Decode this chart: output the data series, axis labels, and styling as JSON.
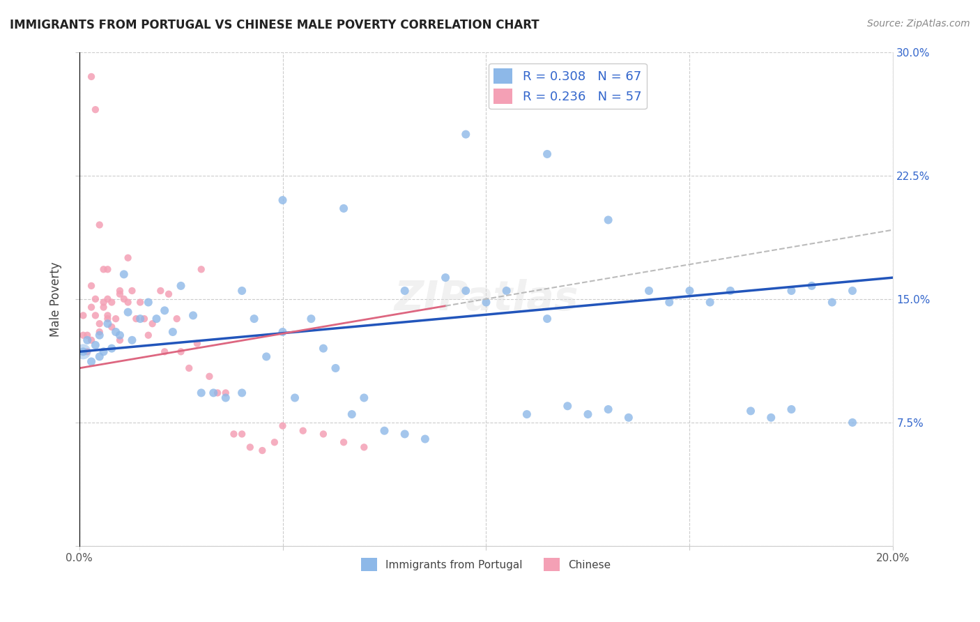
{
  "title": "IMMIGRANTS FROM PORTUGAL VS CHINESE MALE POVERTY CORRELATION CHART",
  "source": "Source: ZipAtlas.com",
  "ylabel": "Male Poverty",
  "legend_label1": "Immigrants from Portugal",
  "legend_label2": "Chinese",
  "R1": 0.308,
  "N1": 67,
  "R2": 0.236,
  "N2": 57,
  "xlim": [
    0.0,
    0.2
  ],
  "ylim": [
    0.0,
    0.3
  ],
  "xticks": [
    0.0,
    0.05,
    0.1,
    0.15,
    0.2
  ],
  "yticks": [
    0.0,
    0.075,
    0.15,
    0.225,
    0.3
  ],
  "color_blue": "#8DB8E8",
  "color_pink": "#F4A0B5",
  "color_blue_line": "#2255BB",
  "color_pink_line": "#DD6680",
  "color_gray_dashed": "#BBBBBB",
  "background": "#FFFFFF",
  "blue_line_start_y": 0.118,
  "blue_line_end_y": 0.163,
  "pink_line_start_y": 0.108,
  "pink_line_end_y": 0.192,
  "blue_x": [
    0.001,
    0.002,
    0.003,
    0.004,
    0.005,
    0.005,
    0.006,
    0.007,
    0.008,
    0.009,
    0.01,
    0.011,
    0.012,
    0.013,
    0.015,
    0.017,
    0.019,
    0.021,
    0.023,
    0.025,
    0.028,
    0.03,
    0.033,
    0.036,
    0.04,
    0.043,
    0.046,
    0.05,
    0.053,
    0.057,
    0.06,
    0.063,
    0.067,
    0.07,
    0.075,
    0.08,
    0.085,
    0.09,
    0.095,
    0.1,
    0.105,
    0.11,
    0.115,
    0.12,
    0.125,
    0.13,
    0.135,
    0.14,
    0.145,
    0.15,
    0.155,
    0.16,
    0.165,
    0.17,
    0.175,
    0.18,
    0.185,
    0.19,
    0.095,
    0.115,
    0.13,
    0.065,
    0.08,
    0.05,
    0.04,
    0.175,
    0.19
  ],
  "blue_y": [
    0.118,
    0.125,
    0.112,
    0.122,
    0.115,
    0.128,
    0.118,
    0.135,
    0.12,
    0.13,
    0.128,
    0.165,
    0.142,
    0.125,
    0.138,
    0.148,
    0.138,
    0.143,
    0.13,
    0.158,
    0.14,
    0.093,
    0.093,
    0.09,
    0.093,
    0.138,
    0.115,
    0.13,
    0.09,
    0.138,
    0.12,
    0.108,
    0.08,
    0.09,
    0.07,
    0.068,
    0.065,
    0.163,
    0.155,
    0.148,
    0.155,
    0.08,
    0.138,
    0.085,
    0.08,
    0.083,
    0.078,
    0.155,
    0.148,
    0.155,
    0.148,
    0.155,
    0.082,
    0.078,
    0.083,
    0.158,
    0.148,
    0.155,
    0.25,
    0.238,
    0.198,
    0.205,
    0.155,
    0.21,
    0.155,
    0.155,
    0.075
  ],
  "pink_x": [
    0.001,
    0.001,
    0.002,
    0.002,
    0.003,
    0.003,
    0.003,
    0.004,
    0.004,
    0.005,
    0.005,
    0.006,
    0.006,
    0.007,
    0.007,
    0.007,
    0.008,
    0.008,
    0.009,
    0.01,
    0.01,
    0.011,
    0.012,
    0.013,
    0.014,
    0.015,
    0.016,
    0.017,
    0.018,
    0.02,
    0.021,
    0.022,
    0.024,
    0.025,
    0.027,
    0.029,
    0.03,
    0.032,
    0.034,
    0.036,
    0.038,
    0.04,
    0.042,
    0.045,
    0.048,
    0.05,
    0.055,
    0.06,
    0.065,
    0.07,
    0.003,
    0.004,
    0.005,
    0.006,
    0.007,
    0.01,
    0.012
  ],
  "pink_y": [
    0.128,
    0.14,
    0.118,
    0.128,
    0.125,
    0.145,
    0.158,
    0.14,
    0.15,
    0.135,
    0.13,
    0.148,
    0.145,
    0.14,
    0.138,
    0.15,
    0.133,
    0.148,
    0.138,
    0.125,
    0.155,
    0.15,
    0.148,
    0.155,
    0.138,
    0.148,
    0.138,
    0.128,
    0.135,
    0.155,
    0.118,
    0.153,
    0.138,
    0.118,
    0.108,
    0.123,
    0.168,
    0.103,
    0.093,
    0.093,
    0.068,
    0.068,
    0.06,
    0.058,
    0.063,
    0.073,
    0.07,
    0.068,
    0.063,
    0.06,
    0.285,
    0.265,
    0.195,
    0.168,
    0.168,
    0.153,
    0.175
  ],
  "watermark": "ZIPatlas",
  "dot_size_blue": 75,
  "dot_size_pink": 55,
  "dot_size_large_blue": 250
}
